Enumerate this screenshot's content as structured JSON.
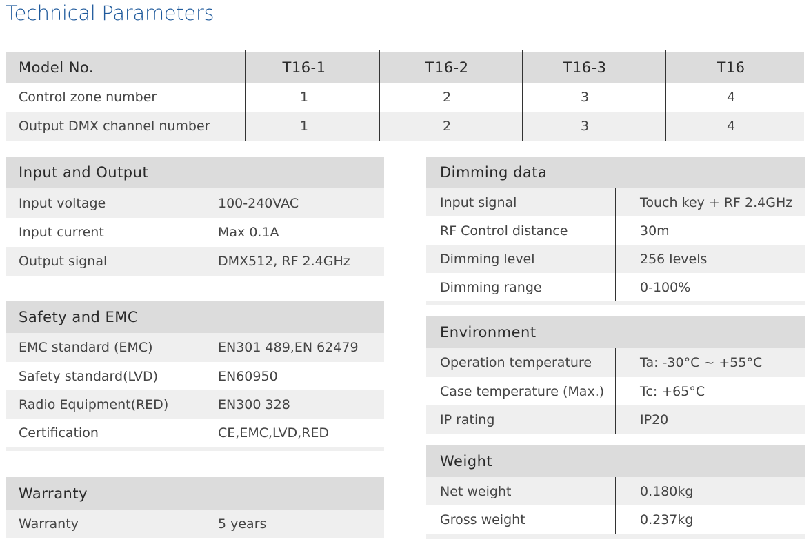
{
  "title": "Technical Parameters",
  "model_table": {
    "header": [
      "Model No.",
      "T16-1",
      "T16-2",
      "T16-3",
      "T16"
    ],
    "rows": [
      [
        "Control zone number",
        "1",
        "2",
        "3",
        "4"
      ],
      [
        "Output DMX channel number",
        "1",
        "2",
        "3",
        "4"
      ]
    ]
  },
  "sections": [
    {
      "title": "Input and Output",
      "rows": [
        [
          "Input voltage",
          "100-240VAC"
        ],
        [
          "Input current",
          "Max 0.1A"
        ],
        [
          "Output signal",
          "DMX512, RF 2.4GHz"
        ]
      ]
    },
    {
      "title": "Safety and EMC",
      "rows": [
        [
          "EMC standard (EMC)",
          "EN301 489,EN 62479"
        ],
        [
          "Safety standard(LVD)",
          "EN60950"
        ],
        [
          "Radio Equipment(RED)",
          "EN300 328"
        ],
        [
          "Certification",
          "CE,EMC,LVD,RED"
        ]
      ]
    },
    {
      "title": "Warranty",
      "rows": [
        [
          "Warranty",
          "5 years"
        ]
      ]
    },
    {
      "title": "Dimming data",
      "rows": [
        [
          "Input signal",
          "Touch key + RF 2.4GHz"
        ],
        [
          "RF Control distance",
          "30m"
        ],
        [
          "Dimming level",
          "256 levels"
        ],
        [
          "Dimming range",
          "0-100%"
        ]
      ]
    },
    {
      "title": "Environment",
      "rows": [
        [
          "Operation temperature",
          "Ta: -30°C ~ +55°C"
        ],
        [
          "Case temperature (Max.)",
          "Tc: +65°C"
        ],
        [
          "IP rating",
          "IP20"
        ]
      ]
    },
    {
      "title": "Weight",
      "rows": [
        [
          "Net weight",
          "0.180kg"
        ],
        [
          "Gross weight",
          "0.237kg"
        ]
      ]
    }
  ]
}
